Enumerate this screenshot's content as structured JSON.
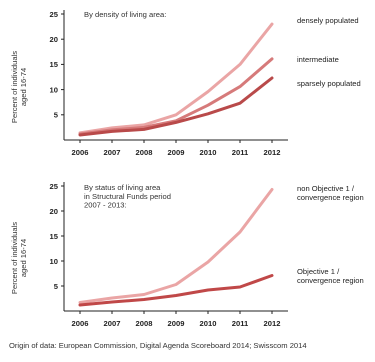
{
  "caption": "Origin of data: European Commission, Digital Agenda Scoreboard 2014; Swisscom 2014",
  "chart_data": [
    {
      "type": "line",
      "subtitle": "By density of living area:",
      "ylabel_lines": [
        "Percent of individuals",
        "aged 16-74"
      ],
      "x": [
        "2006",
        "2007",
        "2008",
        "2009",
        "2010",
        "2011",
        "2012"
      ],
      "ylim": [
        0,
        25
      ],
      "yticks": [
        5,
        10,
        15,
        20,
        25
      ],
      "grid": false,
      "series": [
        {
          "name_lines": [
            "densely populated"
          ],
          "color": "#eaa5a5",
          "values": [
            1.4,
            2.4,
            3.0,
            5.0,
            9.6,
            15.0,
            23.0
          ]
        },
        {
          "name_lines": [
            "intermediate"
          ],
          "color": "#d67a7a",
          "values": [
            1.2,
            2.0,
            2.5,
            3.8,
            6.9,
            10.6,
            16.1
          ]
        },
        {
          "name_lines": [
            "sparsely populated"
          ],
          "color": "#b94a4a",
          "values": [
            1.0,
            1.7,
            2.1,
            3.5,
            5.2,
            7.3,
            12.3
          ]
        }
      ]
    },
    {
      "type": "line",
      "subtitle_lines": [
        "By status of living area",
        "in Structural Funds period",
        "2007 - 2013:"
      ],
      "ylabel_lines": [
        "Percent of individuals",
        "aged 16-74"
      ],
      "x": [
        "2006",
        "2007",
        "2008",
        "2009",
        "2010",
        "2011",
        "2012"
      ],
      "ylim": [
        0,
        25
      ],
      "yticks": [
        5,
        10,
        15,
        20,
        25
      ],
      "grid": false,
      "series": [
        {
          "name_lines": [
            "non Objective 1 /",
            "convergence region"
          ],
          "color": "#eaa5a5",
          "values": [
            1.7,
            2.6,
            3.3,
            5.3,
            9.8,
            15.8,
            24.3
          ]
        },
        {
          "name_lines": [
            "Objective 1 /",
            "convergence region"
          ],
          "color": "#c04848",
          "values": [
            1.2,
            1.8,
            2.3,
            3.1,
            4.2,
            4.8,
            7.1
          ]
        }
      ]
    }
  ]
}
